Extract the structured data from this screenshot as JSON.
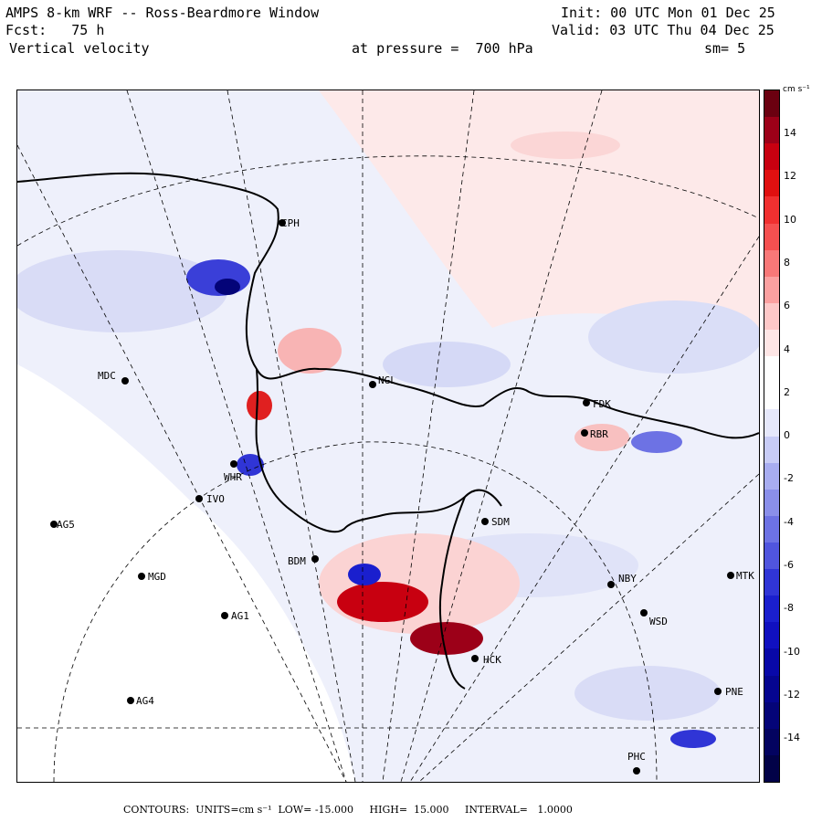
{
  "header": {
    "title": "AMPS 8-km WRF -- Ross-Beardmore Window",
    "forecast": "Fcst:   75 h",
    "variable": "Vertical velocity",
    "init": "Init: 00 UTC Mon 01 Dec 25",
    "valid": "Valid: 03 UTC Thu 04 Dec 25",
    "pressure": "at pressure =  700 hPa",
    "smoothing": "sm= 5"
  },
  "colorbar": {
    "unit_label": "cm s⁻¹",
    "ticks": [
      "14",
      "12",
      "10",
      "8",
      "6",
      "4",
      "2",
      "0",
      "-2",
      "-4",
      "-6",
      "-8",
      "-10",
      "-12",
      "-14"
    ],
    "colors": [
      "#6b0010",
      "#9c0018",
      "#c80010",
      "#e01010",
      "#f03030",
      "#f55050",
      "#f87878",
      "#fba0a0",
      "#fdc8c8",
      "#fee6e6",
      "#ffffff",
      "#ffffff",
      "#e6e8fb",
      "#c8ccf6",
      "#a8adf0",
      "#8a8fea",
      "#6d72e4",
      "#5055de",
      "#3035d6",
      "#1a1fce",
      "#1010c0",
      "#0808a8",
      "#050590",
      "#040478",
      "#030360",
      "#020248"
    ]
  },
  "stations": [
    {
      "code": "CPH"
    },
    {
      "code": "MDC"
    },
    {
      "code": "NGL"
    },
    {
      "code": "FDK"
    },
    {
      "code": "RBR"
    },
    {
      "code": "WHR"
    },
    {
      "code": "IVO"
    },
    {
      "code": "AG5"
    },
    {
      "code": "SDM"
    },
    {
      "code": "BDM"
    },
    {
      "code": "MGD"
    },
    {
      "code": "NBY"
    },
    {
      "code": "MTK"
    },
    {
      "code": "AG1"
    },
    {
      "code": "WSD"
    },
    {
      "code": "HCK"
    },
    {
      "code": "AG4"
    },
    {
      "code": "PNE"
    },
    {
      "code": "PHC"
    }
  ],
  "footer": {
    "text": "CONTOURS:  UNITS=cm s⁻¹  LOW= -15.000     HIGH=  15.000     INTERVAL=   1.0000"
  }
}
